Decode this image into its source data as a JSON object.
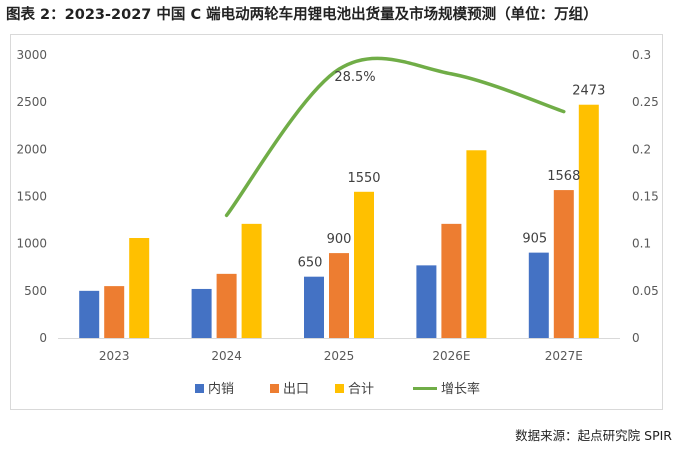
{
  "title": "图表 2：2023-2027 中国 C 端电动两轮车用锂电池出货量及市场规模预测（单位：万组）",
  "source": "数据来源：起点研究院 SPIR",
  "chart_data": {
    "type": "bar",
    "categories": [
      "2023",
      "2024",
      "2025",
      "2026E",
      "2027E"
    ],
    "series": [
      {
        "name": "内销",
        "color": "#4472C4",
        "values": [
          500,
          520,
          650,
          770,
          905
        ]
      },
      {
        "name": "出口",
        "color": "#ED7D31",
        "values": [
          550,
          680,
          900,
          1210,
          1568
        ]
      },
      {
        "name": "合计",
        "color": "#FFC000",
        "values": [
          1060,
          1210,
          1550,
          1990,
          2473
        ]
      }
    ],
    "line_series": {
      "name": "增长率",
      "color": "#70AD47",
      "axis": "right",
      "values": [
        null,
        0.13,
        0.285,
        0.28,
        0.24
      ]
    },
    "data_labels": [
      {
        "series": 0,
        "index": 2,
        "text": "650"
      },
      {
        "series": 1,
        "index": 2,
        "text": "900"
      },
      {
        "series": 2,
        "index": 2,
        "text": "1550"
      },
      {
        "series": 0,
        "index": 4,
        "text": "905"
      },
      {
        "series": 1,
        "index": 4,
        "text": "1568"
      },
      {
        "series": 2,
        "index": 4,
        "text": "2473"
      },
      {
        "series": "line",
        "index": 2,
        "text": "28.5%"
      }
    ],
    "y_left": {
      "min": 0,
      "max": 3000,
      "step": 500,
      "ticks": [
        "0",
        "500",
        "1000",
        "1500",
        "2000",
        "2500",
        "3000"
      ]
    },
    "y_right": {
      "min": 0,
      "max": 0.3,
      "step": 0.05,
      "ticks": [
        "0",
        "0.05",
        "0.1",
        "0.15",
        "0.2",
        "0.25",
        "0.3"
      ]
    },
    "legend": {
      "position": "bottom",
      "items": [
        "内销",
        "出口",
        "合计",
        "增长率"
      ]
    }
  }
}
